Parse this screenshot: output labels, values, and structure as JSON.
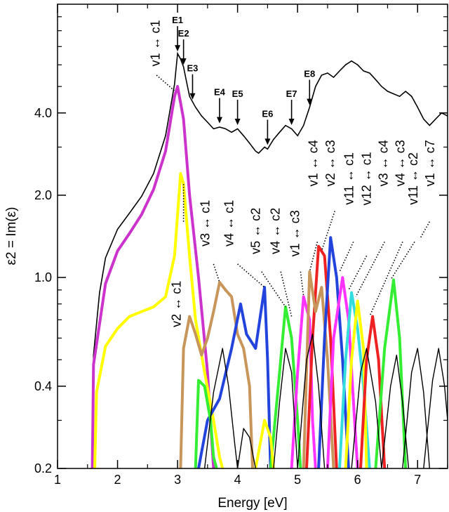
{
  "chart_data": {
    "type": "line",
    "xlabel": "Energy [eV]",
    "ylabel": "ε2 = Im(ε)",
    "xlim": [
      1,
      7.5
    ],
    "ylim": [
      0.2,
      10
    ],
    "yscale": "log",
    "grid": false,
    "x_ticks": [
      1,
      2,
      3,
      4,
      5,
      6,
      7
    ],
    "y_ticks": [
      0.2,
      0.4,
      1.0,
      2.0,
      4.0
    ],
    "y_tick_labels": [
      "0.2",
      "0.4",
      "1.0",
      "2.0",
      "4.0"
    ],
    "total": {
      "color": "#000000",
      "points": [
        [
          1.58,
          0.2
        ],
        [
          1.6,
          0.52
        ],
        [
          1.7,
          0.88
        ],
        [
          1.8,
          1.18
        ],
        [
          2.0,
          1.5
        ],
        [
          2.2,
          1.72
        ],
        [
          2.4,
          1.98
        ],
        [
          2.6,
          2.4
        ],
        [
          2.8,
          3.3
        ],
        [
          2.95,
          5.1
        ],
        [
          3.0,
          6.6
        ],
        [
          3.05,
          6.3
        ],
        [
          3.1,
          5.9
        ],
        [
          3.15,
          5.2
        ],
        [
          3.2,
          4.6
        ],
        [
          3.3,
          4.2
        ],
        [
          3.4,
          3.9
        ],
        [
          3.5,
          3.7
        ],
        [
          3.6,
          3.5
        ],
        [
          3.7,
          3.55
        ],
        [
          3.8,
          3.5
        ],
        [
          3.9,
          3.4
        ],
        [
          4.0,
          3.5
        ],
        [
          4.1,
          3.3
        ],
        [
          4.2,
          3.1
        ],
        [
          4.3,
          2.9
        ],
        [
          4.35,
          2.85
        ],
        [
          4.45,
          3.0
        ],
        [
          4.5,
          2.95
        ],
        [
          4.6,
          3.2
        ],
        [
          4.7,
          3.4
        ],
        [
          4.8,
          3.6
        ],
        [
          4.9,
          3.5
        ],
        [
          5.0,
          3.3
        ],
        [
          5.1,
          3.6
        ],
        [
          5.2,
          4.2
        ],
        [
          5.3,
          5.0
        ],
        [
          5.4,
          5.5
        ],
        [
          5.5,
          5.6
        ],
        [
          5.6,
          5.4
        ],
        [
          5.7,
          5.7
        ],
        [
          5.8,
          6.0
        ],
        [
          5.9,
          6.2
        ],
        [
          6.0,
          6.0
        ],
        [
          6.1,
          5.7
        ],
        [
          6.2,
          5.6
        ],
        [
          6.3,
          5.3
        ],
        [
          6.4,
          5.0
        ],
        [
          6.5,
          4.8
        ],
        [
          6.6,
          4.7
        ],
        [
          6.7,
          4.6
        ],
        [
          6.8,
          4.8
        ],
        [
          6.9,
          4.6
        ],
        [
          7.0,
          4.2
        ],
        [
          7.1,
          3.8
        ],
        [
          7.2,
          3.6
        ],
        [
          7.3,
          3.8
        ],
        [
          7.4,
          4.0
        ],
        [
          7.5,
          3.9
        ]
      ]
    },
    "series": [
      {
        "color": "#cc33cc",
        "points": [
          [
            1.58,
            0.2
          ],
          [
            1.6,
            0.48
          ],
          [
            1.8,
            0.95
          ],
          [
            2.0,
            1.25
          ],
          [
            2.2,
            1.45
          ],
          [
            2.4,
            1.7
          ],
          [
            2.6,
            2.1
          ],
          [
            2.8,
            2.9
          ],
          [
            2.95,
            4.6
          ],
          [
            3.0,
            5.0
          ],
          [
            3.1,
            3.8
          ],
          [
            3.2,
            2.0
          ],
          [
            3.35,
            1.0
          ],
          [
            3.5,
            0.45
          ],
          [
            3.6,
            0.2
          ]
        ]
      },
      {
        "color": "#ffff00",
        "points": [
          [
            1.62,
            0.2
          ],
          [
            1.65,
            0.38
          ],
          [
            1.8,
            0.56
          ],
          [
            2.0,
            0.65
          ],
          [
            2.2,
            0.72
          ],
          [
            2.4,
            0.75
          ],
          [
            2.6,
            0.78
          ],
          [
            2.8,
            0.85
          ],
          [
            2.95,
            1.2
          ],
          [
            3.05,
            2.4
          ],
          [
            3.1,
            2.2
          ],
          [
            3.2,
            1.2
          ],
          [
            3.3,
            0.7
          ],
          [
            3.45,
            0.45
          ],
          [
            3.6,
            0.3
          ],
          [
            3.7,
            0.22
          ],
          [
            3.75,
            0.2
          ]
        ]
      },
      {
        "color": "#c8955a",
        "points": [
          [
            3.05,
            0.2
          ],
          [
            3.1,
            0.55
          ],
          [
            3.2,
            0.72
          ],
          [
            3.3,
            0.62
          ],
          [
            3.4,
            0.52
          ],
          [
            3.5,
            0.6
          ],
          [
            3.6,
            0.75
          ],
          [
            3.7,
            0.96
          ],
          [
            3.8,
            0.9
          ],
          [
            3.9,
            0.85
          ],
          [
            4.0,
            0.62
          ],
          [
            4.1,
            0.55
          ],
          [
            4.2,
            0.4
          ],
          [
            4.25,
            0.2
          ]
        ]
      },
      {
        "color": "#2244dd",
        "points": [
          [
            3.35,
            0.2
          ],
          [
            3.5,
            0.3
          ],
          [
            3.7,
            0.36
          ],
          [
            3.9,
            0.55
          ],
          [
            4.05,
            0.8
          ],
          [
            4.15,
            0.62
          ],
          [
            4.3,
            0.55
          ],
          [
            4.45,
            0.92
          ],
          [
            4.5,
            0.5
          ],
          [
            4.55,
            0.2
          ]
        ]
      },
      {
        "color": "#33ee33",
        "points": [
          [
            3.3,
            0.2
          ],
          [
            3.35,
            0.42
          ],
          [
            3.45,
            0.4
          ],
          [
            3.55,
            0.3
          ],
          [
            3.6,
            0.22
          ],
          [
            3.65,
            0.2
          ]
        ]
      },
      {
        "color": "#33ee33",
        "points": [
          [
            4.55,
            0.2
          ],
          [
            4.7,
            0.45
          ],
          [
            4.8,
            0.78
          ],
          [
            4.9,
            0.6
          ],
          [
            5.0,
            0.3
          ],
          [
            5.05,
            0.2
          ]
        ]
      },
      {
        "color": "#ffff00",
        "points": [
          [
            4.3,
            0.2
          ],
          [
            4.45,
            0.3
          ],
          [
            4.55,
            0.26
          ],
          [
            4.6,
            0.2
          ]
        ]
      },
      {
        "color": "#ff33ff",
        "points": [
          [
            4.9,
            0.2
          ],
          [
            5.0,
            0.45
          ],
          [
            5.1,
            0.85
          ],
          [
            5.2,
            0.7
          ],
          [
            5.25,
            0.3
          ],
          [
            5.3,
            0.2
          ]
        ]
      },
      {
        "color": "#ee2222",
        "points": [
          [
            5.15,
            0.2
          ],
          [
            5.25,
            0.6
          ],
          [
            5.35,
            1.3
          ],
          [
            5.45,
            1.2
          ],
          [
            5.55,
            0.6
          ],
          [
            5.65,
            0.2
          ]
        ]
      },
      {
        "color": "#c8955a",
        "points": [
          [
            5.1,
            0.2
          ],
          [
            5.2,
            1.05
          ],
          [
            5.3,
            0.75
          ],
          [
            5.4,
            0.92
          ],
          [
            5.5,
            0.5
          ],
          [
            5.6,
            0.2
          ]
        ]
      },
      {
        "color": "#2244dd",
        "points": [
          [
            5.35,
            0.2
          ],
          [
            5.45,
            0.6
          ],
          [
            5.55,
            1.4
          ],
          [
            5.65,
            1.0
          ],
          [
            5.75,
            0.5
          ],
          [
            5.85,
            0.2
          ]
        ]
      },
      {
        "color": "#ff33ff",
        "points": [
          [
            5.5,
            0.2
          ],
          [
            5.6,
            0.6
          ],
          [
            5.75,
            1.0
          ],
          [
            5.85,
            0.7
          ],
          [
            5.95,
            0.3
          ],
          [
            6.0,
            0.2
          ]
        ]
      },
      {
        "color": "#33dddd",
        "points": [
          [
            5.7,
            0.2
          ],
          [
            5.8,
            0.5
          ],
          [
            5.9,
            0.88
          ],
          [
            6.0,
            0.65
          ],
          [
            6.1,
            0.4
          ],
          [
            6.2,
            0.2
          ]
        ]
      },
      {
        "color": "#ffff00",
        "points": [
          [
            5.8,
            0.2
          ],
          [
            5.9,
            0.5
          ],
          [
            6.0,
            0.82
          ],
          [
            6.1,
            0.55
          ],
          [
            6.15,
            0.2
          ]
        ]
      },
      {
        "color": "#ee2222",
        "points": [
          [
            6.05,
            0.2
          ],
          [
            6.15,
            0.5
          ],
          [
            6.25,
            0.72
          ],
          [
            6.35,
            0.5
          ],
          [
            6.45,
            0.2
          ]
        ]
      },
      {
        "color": "#33ee33",
        "points": [
          [
            6.3,
            0.2
          ],
          [
            6.45,
            0.55
          ],
          [
            6.6,
            0.98
          ],
          [
            6.7,
            0.6
          ],
          [
            6.8,
            0.2
          ]
        ]
      },
      {
        "color": "#000000",
        "points": [
          [
            3.45,
            0.2
          ],
          [
            3.6,
            0.38
          ],
          [
            3.75,
            0.55
          ],
          [
            3.85,
            0.4
          ],
          [
            3.95,
            0.25
          ],
          [
            4.0,
            0.2
          ]
        ]
      },
      {
        "color": "#000000",
        "points": [
          [
            4.0,
            0.2
          ],
          [
            4.1,
            0.28
          ],
          [
            4.2,
            0.26
          ],
          [
            4.3,
            0.2
          ]
        ]
      },
      {
        "color": "#000000",
        "points": [
          [
            4.6,
            0.2
          ],
          [
            4.7,
            0.35
          ],
          [
            4.8,
            0.55
          ],
          [
            4.9,
            0.45
          ],
          [
            5.0,
            0.2
          ]
        ]
      },
      {
        "color": "#000000",
        "points": [
          [
            5.0,
            0.2
          ],
          [
            5.15,
            0.5
          ],
          [
            5.25,
            0.62
          ],
          [
            5.35,
            0.4
          ],
          [
            5.45,
            0.2
          ]
        ]
      },
      {
        "color": "#000000",
        "points": [
          [
            5.9,
            0.2
          ],
          [
            6.05,
            0.45
          ],
          [
            6.15,
            0.55
          ],
          [
            6.3,
            0.35
          ],
          [
            6.4,
            0.2
          ]
        ]
      },
      {
        "color": "#000000",
        "points": [
          [
            6.4,
            0.2
          ],
          [
            6.55,
            0.4
          ],
          [
            6.65,
            0.52
          ],
          [
            6.75,
            0.35
          ],
          [
            6.85,
            0.2
          ]
        ]
      },
      {
        "color": "#000000",
        "points": [
          [
            6.75,
            0.2
          ],
          [
            6.9,
            0.45
          ],
          [
            7.0,
            0.55
          ],
          [
            7.1,
            0.38
          ],
          [
            7.2,
            0.2
          ]
        ]
      },
      {
        "color": "#000000",
        "points": [
          [
            7.1,
            0.2
          ],
          [
            7.25,
            0.42
          ],
          [
            7.35,
            0.55
          ],
          [
            7.45,
            0.4
          ],
          [
            7.5,
            0.3
          ]
        ]
      }
    ],
    "peak_markers": [
      {
        "label": "E1",
        "x": 3.0,
        "tip": 6.6
      },
      {
        "label": "E2",
        "x": 3.1,
        "tip": 5.9
      },
      {
        "label": "E3",
        "x": 3.25,
        "tip": 4.4
      },
      {
        "label": "E4",
        "x": 3.7,
        "tip": 3.6
      },
      {
        "label": "E5",
        "x": 4.0,
        "tip": 3.55
      },
      {
        "label": "E6",
        "x": 4.5,
        "tip": 3.0
      },
      {
        "label": "E7",
        "x": 4.9,
        "tip": 3.55
      },
      {
        "label": "E8",
        "x": 5.2,
        "tip": 4.2
      }
    ],
    "annotations": [
      {
        "text": "v1 ↔ c1",
        "tx": 2.7,
        "ty": 7.2,
        "px": 2.96,
        "py": 4.8,
        "lx": 2.65,
        "ly": 5.5
      },
      {
        "text": "v2 ↔ c1",
        "tx": 3.05,
        "ty": 0.8,
        "px": 3.1,
        "py": 2.2,
        "lx": 3.1,
        "ly": 1.6
      },
      {
        "text": "v3 ↔ c1",
        "tx": 3.53,
        "ty": 1.58,
        "px": 3.7,
        "py": 0.96,
        "lx": 3.6,
        "ly": 1.12
      },
      {
        "text": "v4 ↔ c1",
        "tx": 3.93,
        "ty": 1.58,
        "px": 4.45,
        "py": 0.92,
        "lx": 4.0,
        "ly": 1.12
      },
      {
        "text": "v5 ↔ c2",
        "tx": 4.37,
        "ty": 1.48,
        "px": 4.8,
        "py": 0.78,
        "lx": 4.4,
        "ly": 1.05
      },
      {
        "text": "v4 ↔ c2",
        "tx": 4.7,
        "ty": 1.48,
        "px": 4.9,
        "py": 0.72,
        "lx": 4.72,
        "ly": 1.05
      },
      {
        "text": "v1 ↔ c3",
        "tx": 5.03,
        "ty": 1.45,
        "px": 5.1,
        "py": 0.85,
        "lx": 5.05,
        "ly": 1.05
      },
      {
        "text": "v1 ↔ c4",
        "tx": 5.33,
        "ty": 2.62,
        "px": 5.2,
        "py": 1.05,
        "lx": 5.33,
        "ly": 1.35
      },
      {
        "text": "v2 ↔ c3",
        "tx": 5.62,
        "ty": 2.62,
        "px": 5.4,
        "py": 1.25,
        "lx": 5.62,
        "ly": 1.75
      },
      {
        "text": "v11 ↔ c1",
        "tx": 5.93,
        "ty": 2.3,
        "px": 5.7,
        "py": 1.05,
        "lx": 5.93,
        "ly": 1.35
      },
      {
        "text": "v12 ↔ c1",
        "tx": 6.22,
        "ty": 2.3,
        "px": 5.85,
        "py": 0.9,
        "lx": 6.15,
        "ly": 1.2
      },
      {
        "text": "v3 ↔ c4",
        "tx": 6.5,
        "ty": 2.62,
        "px": 5.97,
        "py": 0.85,
        "lx": 6.45,
        "ly": 1.35
      },
      {
        "text": "v4 ↔ c3",
        "tx": 6.78,
        "ty": 2.62,
        "px": 6.2,
        "py": 0.72,
        "lx": 6.75,
        "ly": 1.35
      },
      {
        "text": "v11 ↔ c2",
        "tx": 7.0,
        "ty": 2.3,
        "px": 6.55,
        "py": 0.98,
        "lx": 6.95,
        "ly": 1.35
      },
      {
        "text": "v1 ↔ c7",
        "tx": 7.28,
        "ty": 2.62,
        "px": 7.05,
        "py": 1.4,
        "lx": 7.2,
        "ly": 1.6
      }
    ]
  }
}
